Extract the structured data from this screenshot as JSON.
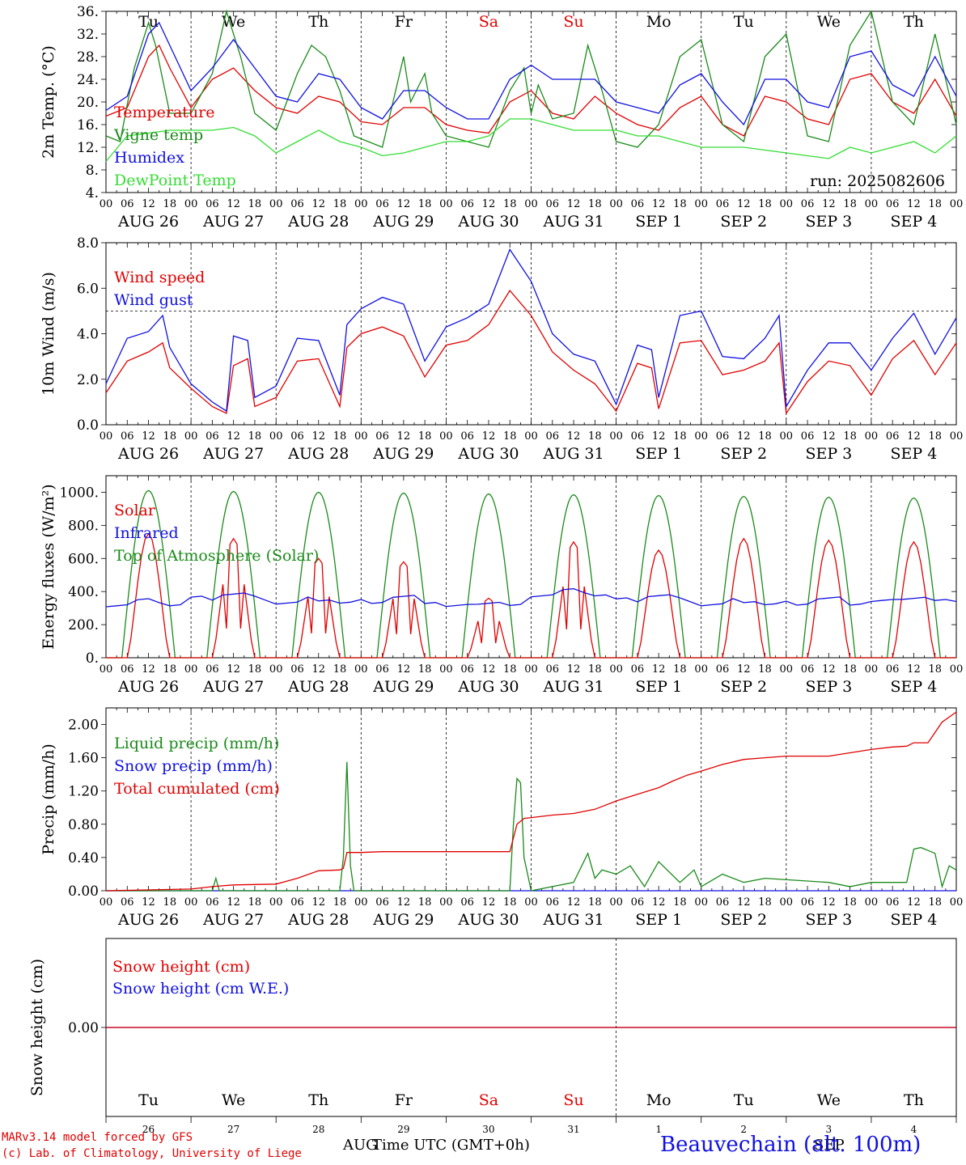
{
  "days": {
    "names": [
      "Tu",
      "We",
      "Th",
      "Fr",
      "Sa",
      "Su",
      "Mo",
      "Tu",
      "We",
      "Th"
    ],
    "name_colors": [
      "#000000",
      "#000000",
      "#000000",
      "#000000",
      "#e00000",
      "#e00000",
      "#000000",
      "#000000",
      "#000000",
      "#000000"
    ],
    "dates": [
      "AUG 26",
      "AUG 27",
      "AUG 28",
      "AUG 29",
      "AUG 30",
      "AUG 31",
      "SEP  1",
      "SEP  2",
      "SEP  3",
      "SEP  4"
    ],
    "day_numbers": [
      "26",
      "27",
      "28",
      "29",
      "30",
      "31",
      "1",
      "2",
      "3",
      "4"
    ],
    "hour_ticks": [
      "00",
      "06",
      "12",
      "18"
    ],
    "end_tick": "00"
  },
  "footer": {
    "model_line": "MARv3.14 model forced by GFS",
    "lab_line": "(c) Lab. of Climatology, University of Liege",
    "month_left": "AUG",
    "month_right": "SEP",
    "time_label": "Time UTC (GMT+0h)",
    "station": "Beauvechain (alt. 100m)"
  },
  "colors": {
    "red": "#e00000",
    "green": "#1a8a1a",
    "blue": "#1010e0",
    "lightgreen": "#33dd33"
  },
  "chart_data": [
    {
      "type": "line",
      "id": "temperature",
      "ylabel": "2m Temp. (°C)",
      "ylim": [
        4,
        36
      ],
      "yticks": [
        "4.",
        "8.",
        "12.",
        "16.",
        "20.",
        "24.",
        "28.",
        "32.",
        "36."
      ],
      "run_label": "run: 2025082606",
      "x_unit": "hours since AUG 26 00 UTC",
      "series": [
        {
          "name": "Temperature",
          "color": "red",
          "x": [
            0,
            6,
            12,
            15,
            18,
            24,
            30,
            36,
            42,
            48,
            54,
            60,
            66,
            72,
            78,
            84,
            90,
            96,
            102,
            108,
            114,
            120,
            126,
            132,
            138,
            144,
            150,
            156,
            162,
            168,
            174,
            180,
            186,
            192,
            198,
            204,
            210,
            216,
            222,
            228,
            234,
            240
          ],
          "y": [
            17.5,
            19,
            28,
            30,
            26,
            19,
            24,
            26,
            22,
            19,
            18,
            21,
            20,
            16.5,
            16,
            19,
            19,
            16,
            15,
            14.5,
            20,
            22,
            18,
            17,
            21,
            18,
            16,
            15,
            19,
            21,
            16,
            14,
            21,
            20,
            17,
            16,
            24,
            25,
            20,
            18,
            24,
            17.5
          ]
        },
        {
          "name": "Vigne temp",
          "color": "green",
          "x": [
            0,
            4,
            8,
            12,
            14,
            18,
            24,
            30,
            34,
            38,
            42,
            48,
            54,
            58,
            62,
            66,
            70,
            78,
            84,
            86,
            90,
            92,
            96,
            102,
            108,
            114,
            118,
            120,
            122,
            126,
            132,
            136,
            140,
            144,
            150,
            156,
            162,
            168,
            174,
            180,
            186,
            192,
            198,
            204,
            210,
            216,
            222,
            228,
            234,
            240
          ],
          "y": [
            14,
            13,
            26,
            34,
            30,
            18,
            18,
            25,
            36,
            28,
            18,
            15,
            25,
            30,
            28,
            22,
            14,
            12,
            28,
            20,
            25,
            18,
            14,
            13,
            12,
            22,
            26,
            18,
            23,
            17,
            18,
            30,
            22,
            13,
            12,
            16,
            28,
            31,
            16,
            13,
            28,
            32,
            14,
            13,
            30,
            36,
            20,
            16,
            32,
            16
          ]
        },
        {
          "name": "Humidex",
          "color": "blue",
          "x": [
            0,
            6,
            12,
            15,
            18,
            24,
            30,
            36,
            42,
            48,
            54,
            60,
            66,
            72,
            78,
            84,
            90,
            96,
            102,
            108,
            114,
            120,
            126,
            132,
            138,
            144,
            150,
            156,
            162,
            168,
            174,
            180,
            186,
            192,
            198,
            204,
            210,
            216,
            222,
            228,
            234,
            240
          ],
          "y": [
            18.5,
            21,
            32,
            34,
            30,
            22,
            26,
            31,
            26,
            21,
            20,
            25,
            24,
            19,
            17,
            22,
            22,
            19,
            17,
            17,
            24,
            26.5,
            24,
            24,
            24,
            20,
            19,
            18,
            23,
            25,
            20,
            16,
            24,
            24,
            20,
            19,
            28,
            29,
            23,
            21,
            28,
            21
          ]
        },
        {
          "name": "DewPoint Temp",
          "color": "lightgreen",
          "x": [
            0,
            6,
            12,
            18,
            24,
            30,
            36,
            42,
            48,
            54,
            60,
            66,
            72,
            78,
            84,
            90,
            96,
            102,
            108,
            114,
            120,
            126,
            132,
            138,
            144,
            150,
            156,
            162,
            168,
            174,
            180,
            186,
            192,
            198,
            204,
            210,
            216,
            222,
            228,
            234,
            240
          ],
          "y": [
            9.5,
            14,
            14.5,
            15,
            15,
            15,
            15.5,
            14,
            11,
            13,
            15,
            13,
            12,
            10.5,
            11,
            12,
            13,
            13,
            14,
            17,
            17,
            16,
            15,
            15,
            15,
            14,
            14,
            13,
            12,
            12,
            12,
            11.5,
            11,
            10.5,
            10,
            12,
            11,
            12,
            13,
            11,
            14
          ]
        }
      ]
    },
    {
      "type": "line",
      "id": "wind",
      "ylabel": "10m Wind (m/s)",
      "ylim": [
        0,
        8
      ],
      "yticks": [
        "0.0",
        "2.0",
        "4.0",
        "6.0",
        "8.0"
      ],
      "reference_line": 5,
      "series": [
        {
          "name": "Wind speed",
          "color": "red",
          "x": [
            0,
            6,
            12,
            16,
            18,
            24,
            30,
            34,
            36,
            40,
            42,
            48,
            54,
            60,
            66,
            68,
            72,
            78,
            84,
            90,
            96,
            102,
            108,
            114,
            120,
            126,
            132,
            138,
            144,
            150,
            154,
            156,
            162,
            168,
            174,
            180,
            186,
            190,
            192,
            198,
            204,
            210,
            216,
            222,
            228,
            234,
            240
          ],
          "y": [
            1.4,
            2.8,
            3.2,
            3.6,
            2.5,
            1.6,
            0.8,
            0.5,
            2.6,
            2.9,
            0.8,
            1.2,
            2.8,
            2.9,
            0.8,
            3.4,
            4,
            4.3,
            3.9,
            2.1,
            3.5,
            3.7,
            4.4,
            5.9,
            4.8,
            3.2,
            2.4,
            1.8,
            0.6,
            2.7,
            2.5,
            0.7,
            3.6,
            3.7,
            2.2,
            2.4,
            2.8,
            3.6,
            0.5,
            1.9,
            2.8,
            2.6,
            1.3,
            2.9,
            3.7,
            2.2,
            3.6
          ]
        },
        {
          "name": "Wind gust",
          "color": "blue",
          "x": [
            0,
            6,
            12,
            16,
            18,
            24,
            30,
            34,
            36,
            40,
            42,
            48,
            54,
            60,
            66,
            68,
            72,
            78,
            84,
            90,
            96,
            102,
            108,
            114,
            120,
            126,
            132,
            138,
            144,
            150,
            154,
            156,
            162,
            168,
            174,
            180,
            186,
            190,
            192,
            198,
            204,
            210,
            216,
            222,
            228,
            234,
            240
          ],
          "y": [
            1.8,
            3.8,
            4.1,
            4.8,
            3.4,
            1.8,
            1,
            0.6,
            3.9,
            3.7,
            1.2,
            1.7,
            3.8,
            3.7,
            1.3,
            4.4,
            5.1,
            5.6,
            5.3,
            2.8,
            4.3,
            4.7,
            5.3,
            7.7,
            6.3,
            4,
            3.1,
            2.8,
            0.9,
            3.5,
            3.3,
            1.2,
            4.8,
            5,
            3,
            2.9,
            3.8,
            4.8,
            0.8,
            2.4,
            3.6,
            3.6,
            2.4,
            3.8,
            4.9,
            3.1,
            4.7
          ]
        }
      ]
    },
    {
      "type": "line",
      "id": "energy",
      "ylabel": "Energy fluxes (W/m²)",
      "ylim": [
        0,
        1100
      ],
      "yticks": [
        "0.",
        "200.",
        "400.",
        "600.",
        "800.",
        "1000."
      ],
      "series": [
        {
          "name": "Solar",
          "color": "red",
          "peaks": [
            750,
            720,
            600,
            580,
            360,
            700,
            650,
            720,
            710,
            700
          ]
        },
        {
          "name": "Infrared",
          "color": "blue",
          "base": [
            320,
            360,
            330,
            340,
            310,
            380,
            350,
            320,
            330,
            340
          ]
        },
        {
          "name": "Top of Atmosphere (Solar)",
          "color": "green",
          "peaks": [
            1010,
            1005,
            1000,
            995,
            990,
            985,
            980,
            975,
            970,
            965
          ]
        }
      ]
    },
    {
      "type": "line",
      "id": "precip",
      "ylabel": "Precip (mm/h)",
      "ylim": [
        0,
        2.2
      ],
      "yticks": [
        "0.00",
        "0.40",
        "0.80",
        "1.20",
        "1.60",
        "2.00"
      ],
      "series": [
        {
          "name": "Liquid precip (mm/h)",
          "color": "green",
          "x": [
            0,
            30,
            31,
            32,
            66,
            67,
            68,
            69,
            70,
            114,
            115,
            116,
            117,
            118,
            120,
            132,
            136,
            138,
            140,
            144,
            148,
            152,
            156,
            162,
            166,
            168,
            174,
            180,
            186,
            204,
            210,
            216,
            226,
            228,
            230,
            234,
            236,
            238,
            240
          ],
          "y": [
            0,
            0,
            0.15,
            0,
            0,
            0.4,
            1.55,
            0.3,
            0,
            0,
            0.8,
            1.35,
            1.3,
            0.4,
            0,
            0.1,
            0.45,
            0.15,
            0.25,
            0.2,
            0.3,
            0.05,
            0.35,
            0.1,
            0.25,
            0.05,
            0.2,
            0.1,
            0.15,
            0.1,
            0.05,
            0.1,
            0.1,
            0.5,
            0.52,
            0.45,
            0.05,
            0.3,
            0.25
          ]
        },
        {
          "name": "Snow precip (mm/h)",
          "color": "blue",
          "x": [
            0,
            240
          ],
          "y": [
            0,
            0
          ]
        },
        {
          "name": "Total cumulated (cm)",
          "color": "red",
          "x": [
            0,
            24,
            30,
            36,
            48,
            54,
            60,
            66,
            67,
            68,
            72,
            78,
            96,
            114,
            116,
            118,
            120,
            126,
            132,
            138,
            144,
            150,
            156,
            160,
            164,
            168,
            174,
            180,
            186,
            192,
            204,
            210,
            216,
            222,
            226,
            228,
            232,
            236,
            240
          ],
          "y": [
            0,
            0.02,
            0.05,
            0.07,
            0.08,
            0.15,
            0.24,
            0.25,
            0.27,
            0.46,
            0.46,
            0.47,
            0.47,
            0.47,
            0.8,
            0.87,
            0.88,
            0.91,
            0.93,
            0.98,
            1.08,
            1.16,
            1.24,
            1.32,
            1.39,
            1.44,
            1.52,
            1.58,
            1.6,
            1.62,
            1.62,
            1.66,
            1.7,
            1.73,
            1.74,
            1.78,
            1.78,
            2.03,
            2.15
          ]
        }
      ]
    },
    {
      "type": "line",
      "id": "snow",
      "ylabel": "Snow height (cm)",
      "yticks": [
        "0.00"
      ],
      "series": [
        {
          "name": "Snow height (cm)",
          "color": "red",
          "x": [
            0,
            240
          ],
          "y": [
            0,
            0
          ]
        },
        {
          "name": "Snow height (cm W.E.)",
          "color": "blue",
          "x": [
            0,
            240
          ],
          "y": [
            0,
            0
          ]
        }
      ]
    }
  ]
}
